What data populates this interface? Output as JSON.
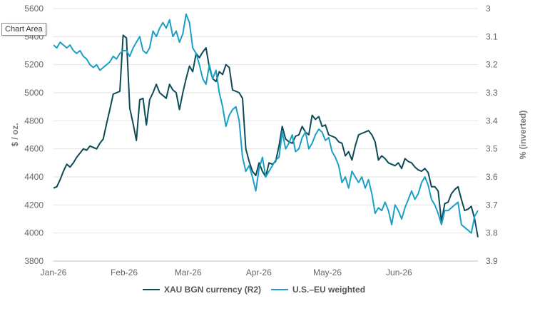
{
  "tooltip": "Chart Area",
  "chart_data": {
    "type": "line",
    "ylabel": "$ / oz.",
    "ylabel_right": "% (inverted)",
    "ylim": [
      3800,
      5600
    ],
    "ylim_right": [
      3,
      3.9
    ],
    "right_axis_inverted": true,
    "yticks": [
      "3800",
      "4000",
      "4200",
      "4400",
      "4600",
      "4800",
      "5000",
      "5200",
      "5400",
      "5600"
    ],
    "yticks_right": [
      "3",
      "3.1",
      "3.2",
      "3.3",
      "3.4",
      "3.5",
      "3.6",
      "3.7",
      "3.8",
      "3.9"
    ],
    "xticks": [
      "Jan-26",
      "Feb-26",
      "Mar-26",
      "Apr-26",
      "May-26",
      "Jun-26"
    ],
    "grid": true,
    "legend_position": "bottom",
    "series": [
      {
        "name": "XAU BGN currency  (R2)",
        "color": "#0d4a57",
        "axis": "left",
        "points": [
          [
            0,
            4320
          ],
          [
            1,
            4330
          ],
          [
            2,
            4380
          ],
          [
            3,
            4440
          ],
          [
            4,
            4490
          ],
          [
            5,
            4470
          ],
          [
            6,
            4500
          ],
          [
            7,
            4540
          ],
          [
            8,
            4570
          ],
          [
            9,
            4600
          ],
          [
            10,
            4590
          ],
          [
            11,
            4620
          ],
          [
            12,
            4610
          ],
          [
            13,
            4600
          ],
          [
            14,
            4640
          ],
          [
            15,
            4670
          ],
          [
            16,
            4780
          ],
          [
            17,
            4880
          ],
          [
            18,
            4990
          ],
          [
            19,
            5000
          ],
          [
            20,
            5010
          ],
          [
            21,
            5410
          ],
          [
            22,
            5390
          ],
          [
            23,
            4890
          ],
          [
            24,
            4780
          ],
          [
            25,
            4660
          ],
          [
            26,
            4950
          ],
          [
            27,
            4960
          ],
          [
            28,
            4770
          ],
          [
            29,
            4950
          ],
          [
            30,
            5000
          ],
          [
            31,
            5060
          ],
          [
            32,
            5000
          ],
          [
            33,
            4980
          ],
          [
            34,
            4960
          ],
          [
            35,
            5060
          ],
          [
            36,
            5020
          ],
          [
            37,
            5000
          ],
          [
            38,
            4880
          ],
          [
            39,
            5000
          ],
          [
            40,
            5100
          ],
          [
            41,
            5190
          ],
          [
            42,
            5150
          ],
          [
            43,
            5280
          ],
          [
            44,
            5250
          ],
          [
            45,
            5290
          ],
          [
            46,
            5320
          ],
          [
            47,
            5180
          ],
          [
            48,
            5100
          ],
          [
            49,
            5080
          ],
          [
            50,
            5150
          ],
          [
            51,
            5130
          ],
          [
            52,
            5200
          ],
          [
            53,
            5180
          ],
          [
            54,
            5020
          ],
          [
            55,
            5010
          ],
          [
            56,
            5000
          ],
          [
            57,
            4960
          ],
          [
            58,
            4600
          ],
          [
            59,
            4510
          ],
          [
            60,
            4440
          ],
          [
            61,
            4410
          ],
          [
            62,
            4500
          ],
          [
            63,
            4440
          ],
          [
            64,
            4400
          ],
          [
            65,
            4500
          ],
          [
            66,
            4490
          ],
          [
            67,
            4510
          ],
          [
            68,
            4620
          ],
          [
            69,
            4760
          ],
          [
            70,
            4670
          ],
          [
            71,
            4650
          ],
          [
            72,
            4640
          ],
          [
            73,
            4690
          ],
          [
            74,
            4700
          ],
          [
            75,
            4760
          ],
          [
            76,
            4720
          ],
          [
            77,
            4700
          ],
          [
            78,
            4840
          ],
          [
            79,
            4810
          ],
          [
            80,
            4830
          ],
          [
            81,
            4760
          ],
          [
            82,
            4770
          ],
          [
            83,
            4700
          ],
          [
            84,
            4690
          ],
          [
            85,
            4680
          ],
          [
            86,
            4650
          ],
          [
            87,
            4640
          ],
          [
            88,
            4550
          ],
          [
            89,
            4580
          ],
          [
            90,
            4520
          ],
          [
            91,
            4620
          ],
          [
            92,
            4700
          ],
          [
            93,
            4710
          ],
          [
            94,
            4720
          ],
          [
            95,
            4730
          ],
          [
            96,
            4700
          ],
          [
            97,
            4650
          ],
          [
            98,
            4520
          ],
          [
            99,
            4550
          ],
          [
            100,
            4530
          ],
          [
            101,
            4500
          ],
          [
            102,
            4490
          ],
          [
            103,
            4480
          ],
          [
            104,
            4500
          ],
          [
            105,
            4460
          ],
          [
            106,
            4530
          ],
          [
            107,
            4510
          ],
          [
            108,
            4500
          ],
          [
            109,
            4470
          ],
          [
            110,
            4450
          ],
          [
            111,
            4440
          ],
          [
            112,
            4460
          ],
          [
            113,
            4430
          ],
          [
            114,
            4330
          ],
          [
            115,
            4330
          ],
          [
            116,
            4300
          ],
          [
            117,
            4080
          ],
          [
            118,
            4210
          ],
          [
            119,
            4220
          ],
          [
            120,
            4280
          ],
          [
            121,
            4310
          ],
          [
            122,
            4330
          ],
          [
            123,
            4240
          ],
          [
            124,
            4160
          ],
          [
            125,
            4170
          ],
          [
            126,
            4190
          ],
          [
            127,
            4100
          ],
          [
            128,
            3970
          ]
        ]
      },
      {
        "name": "U.S.–EU weighted",
        "color": "#1a9fc7",
        "axis": "right",
        "points": [
          [
            0,
            3.13
          ],
          [
            1,
            3.14
          ],
          [
            2,
            3.12
          ],
          [
            3,
            3.13
          ],
          [
            4,
            3.14
          ],
          [
            5,
            3.13
          ],
          [
            6,
            3.15
          ],
          [
            7,
            3.16
          ],
          [
            8,
            3.15
          ],
          [
            9,
            3.17
          ],
          [
            10,
            3.18
          ],
          [
            11,
            3.2
          ],
          [
            12,
            3.21
          ],
          [
            13,
            3.2
          ],
          [
            14,
            3.22
          ],
          [
            15,
            3.21
          ],
          [
            16,
            3.2
          ],
          [
            17,
            3.19
          ],
          [
            18,
            3.17
          ],
          [
            19,
            3.18
          ],
          [
            20,
            3.16
          ],
          [
            21,
            3.15
          ],
          [
            22,
            3.15
          ],
          [
            23,
            3.17
          ],
          [
            24,
            3.14
          ],
          [
            25,
            3.12
          ],
          [
            26,
            3.1
          ],
          [
            27,
            3.15
          ],
          [
            28,
            3.16
          ],
          [
            29,
            3.14
          ],
          [
            30,
            3.08
          ],
          [
            31,
            3.1
          ],
          [
            32,
            3.07
          ],
          [
            33,
            3.05
          ],
          [
            34,
            3.07
          ],
          [
            35,
            3.04
          ],
          [
            36,
            3.1
          ],
          [
            37,
            3.08
          ],
          [
            38,
            3.12
          ],
          [
            39,
            3.09
          ],
          [
            40,
            3.02
          ],
          [
            41,
            3.05
          ],
          [
            42,
            3.14
          ],
          [
            43,
            3.16
          ],
          [
            44,
            3.2
          ],
          [
            45,
            3.25
          ],
          [
            46,
            3.27
          ],
          [
            47,
            3.2
          ],
          [
            48,
            3.25
          ],
          [
            49,
            3.22
          ],
          [
            50,
            3.3
          ],
          [
            51,
            3.35
          ],
          [
            52,
            3.42
          ],
          [
            53,
            3.38
          ],
          [
            54,
            3.36
          ],
          [
            55,
            3.35
          ],
          [
            56,
            3.4
          ],
          [
            57,
            3.53
          ],
          [
            58,
            3.58
          ],
          [
            59,
            3.56
          ],
          [
            60,
            3.6
          ],
          [
            61,
            3.65
          ],
          [
            62,
            3.57
          ],
          [
            63,
            3.53
          ],
          [
            64,
            3.6
          ],
          [
            65,
            3.58
          ],
          [
            66,
            3.56
          ],
          [
            67,
            3.54
          ],
          [
            68,
            3.53
          ],
          [
            69,
            3.44
          ],
          [
            70,
            3.5
          ],
          [
            71,
            3.48
          ],
          [
            72,
            3.45
          ],
          [
            73,
            3.51
          ],
          [
            74,
            3.5
          ],
          [
            75,
            3.46
          ],
          [
            76,
            3.44
          ],
          [
            77,
            3.5
          ],
          [
            78,
            3.48
          ],
          [
            79,
            3.45
          ],
          [
            80,
            3.43
          ],
          [
            81,
            3.44
          ],
          [
            82,
            3.47
          ],
          [
            83,
            3.46
          ],
          [
            84,
            3.51
          ],
          [
            85,
            3.53
          ],
          [
            86,
            3.56
          ],
          [
            87,
            3.62
          ],
          [
            88,
            3.6
          ],
          [
            89,
            3.64
          ],
          [
            90,
            3.58
          ],
          [
            91,
            3.6
          ],
          [
            92,
            3.62
          ],
          [
            93,
            3.6
          ],
          [
            94,
            3.64
          ],
          [
            95,
            3.61
          ],
          [
            96,
            3.66
          ],
          [
            97,
            3.73
          ],
          [
            98,
            3.71
          ],
          [
            99,
            3.72
          ],
          [
            100,
            3.69
          ],
          [
            101,
            3.72
          ],
          [
            102,
            3.77
          ],
          [
            103,
            3.7
          ],
          [
            104,
            3.72
          ],
          [
            105,
            3.75
          ],
          [
            106,
            3.71
          ],
          [
            107,
            3.68
          ],
          [
            108,
            3.65
          ],
          [
            109,
            3.68
          ],
          [
            110,
            3.66
          ],
          [
            111,
            3.62
          ],
          [
            112,
            3.6
          ],
          [
            113,
            3.63
          ],
          [
            114,
            3.68
          ],
          [
            115,
            3.7
          ],
          [
            116,
            3.73
          ],
          [
            117,
            3.77
          ],
          [
            118,
            3.72
          ],
          [
            119,
            3.72
          ],
          [
            120,
            3.71
          ],
          [
            121,
            3.7
          ],
          [
            122,
            3.69
          ],
          [
            123,
            3.77
          ],
          [
            124,
            3.78
          ],
          [
            125,
            3.79
          ],
          [
            126,
            3.8
          ],
          [
            127,
            3.74
          ],
          [
            128,
            3.72
          ]
        ]
      }
    ]
  }
}
